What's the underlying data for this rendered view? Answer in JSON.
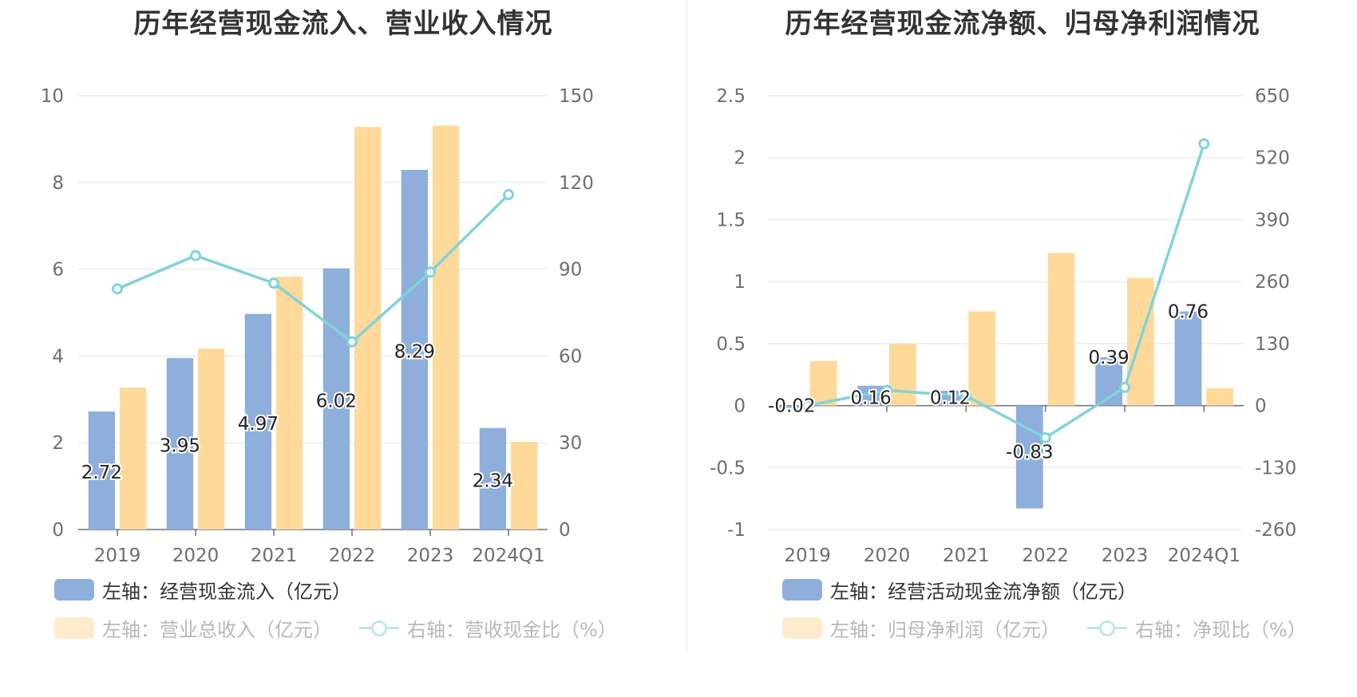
{
  "colors": {
    "bar_left": "#8eaedc",
    "bar_right": "#ffd99a",
    "line": "#82d3d8",
    "legend_faded_bar": "#ffebcc",
    "legend_faded_line": "#bfe6ea",
    "grid": "#e0e4ef",
    "axis_text": "#6e6e6e"
  },
  "chart_data": [
    {
      "type": "bar",
      "title": "历年经营现金流入、营业收入情况",
      "categories": [
        "2019",
        "2020",
        "2021",
        "2022",
        "2023",
        "2024Q1"
      ],
      "y_left_ticks": [
        "0",
        "2",
        "4",
        "6",
        "8",
        "10"
      ],
      "y_left_range": [
        0,
        10
      ],
      "y_right_ticks": [
        "0",
        "30",
        "60",
        "90",
        "120",
        "150"
      ],
      "y_right_range": [
        0,
        150
      ],
      "grid": true,
      "legend_position": "bottom",
      "series": [
        {
          "name": "左轴：经营现金流入（亿元）",
          "kind": "bar",
          "axis": "left",
          "values": [
            2.72,
            3.95,
            4.97,
            6.02,
            8.29,
            2.34
          ],
          "labels": [
            "2.72",
            "3.95",
            "4.97",
            "6.02",
            "8.29",
            "2.34"
          ]
        },
        {
          "name": "左轴：营业总收入（亿元）",
          "kind": "bar",
          "axis": "left",
          "values": [
            3.27,
            4.17,
            5.83,
            9.28,
            9.31,
            2.02
          ]
        },
        {
          "name": "右轴：营收现金比（%）",
          "kind": "line",
          "axis": "right",
          "values": [
            83.2,
            94.7,
            85.2,
            64.9,
            89.0,
            115.8
          ]
        }
      ]
    },
    {
      "type": "bar",
      "title": "历年经营现金流净额、归母净利润情况",
      "categories": [
        "2019",
        "2020",
        "2021",
        "2022",
        "2023",
        "2024Q1"
      ],
      "y_left_ticks": [
        "-1",
        "-0.5",
        "0",
        "0.5",
        "1",
        "1.5",
        "2",
        "2.5"
      ],
      "y_left_range": [
        -1,
        2.5
      ],
      "y_right_ticks": [
        "-260",
        "-130",
        "0",
        "130",
        "260",
        "390",
        "520",
        "650"
      ],
      "y_right_range": [
        -260,
        650
      ],
      "grid": true,
      "legend_position": "bottom",
      "series": [
        {
          "name": "左轴：经营活动现金流净额（亿元）",
          "kind": "bar",
          "axis": "left",
          "values": [
            -0.02,
            0.16,
            0.12,
            -0.83,
            0.39,
            0.76
          ],
          "labels": [
            "-0.02",
            "0.16",
            "0.12",
            "-0.83",
            "0.39",
            "0.76"
          ]
        },
        {
          "name": "左轴：归母净利润（亿元）",
          "kind": "bar",
          "axis": "left",
          "values": [
            0.36,
            0.5,
            0.76,
            1.23,
            1.03,
            0.14
          ]
        },
        {
          "name": "右轴：净现比（%）",
          "kind": "line",
          "axis": "right",
          "values": [
            0.0,
            32.0,
            20.0,
            -67.5,
            37.9,
            549.0
          ]
        }
      ]
    }
  ]
}
